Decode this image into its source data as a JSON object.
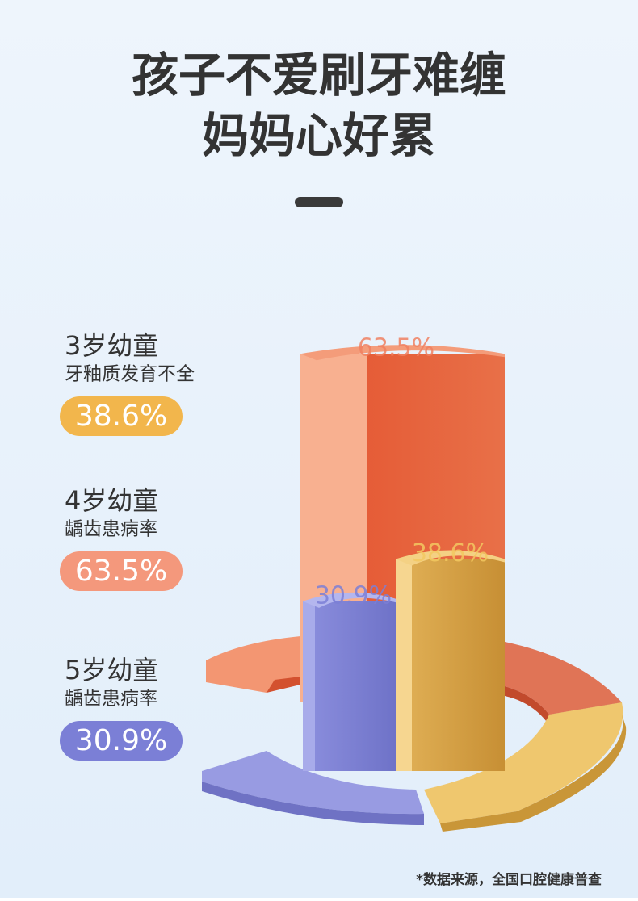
{
  "header": {
    "title": "孩子不爱刷牙难缠",
    "subtitle": "妈妈心好累"
  },
  "items": [
    {
      "group": "3岁幼童",
      "desc": "牙釉质发育不全",
      "value": 38.6,
      "value_label": "38.6%",
      "color": "#f2b64c"
    },
    {
      "group": "4岁幼童",
      "desc": "龋齿患病率",
      "value": 63.5,
      "value_label": "63.5%",
      "color": "#f4987c"
    },
    {
      "group": "5岁幼童",
      "desc": "龋齿患病率",
      "value": 30.9,
      "value_label": "30.9%",
      "color": "#7b7fd6"
    }
  ],
  "source": "*数据来源，全国口腔健康普查"
}
